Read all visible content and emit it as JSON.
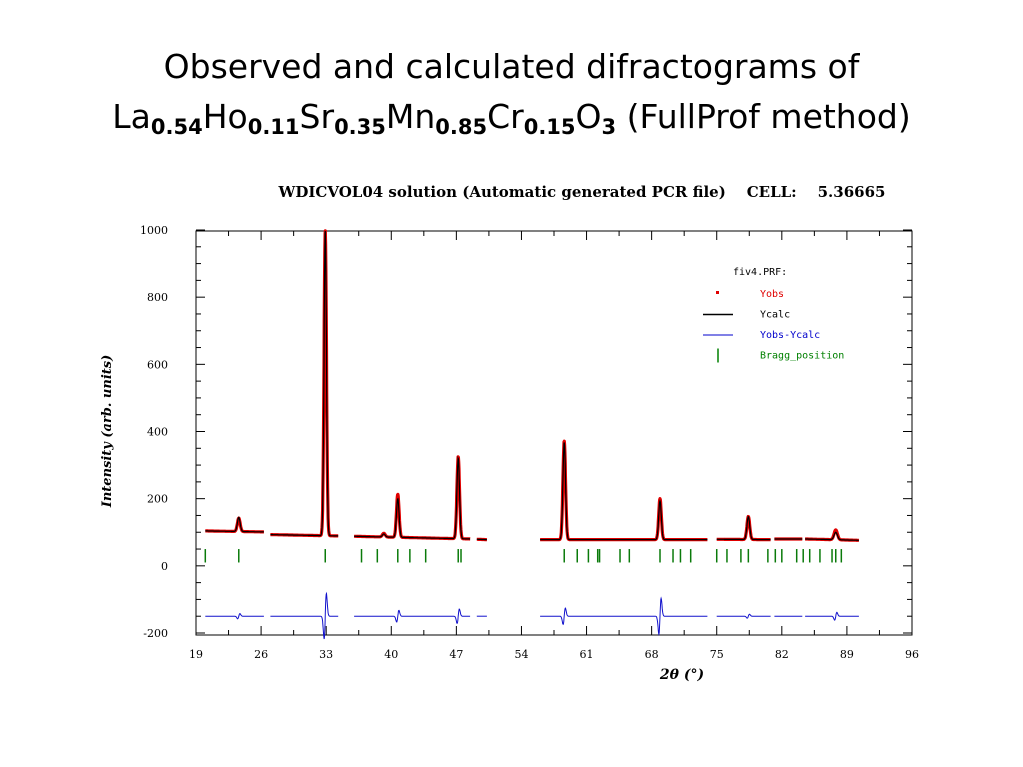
{
  "slide": {
    "title_line1": "Observed and calculated difractograms of",
    "formula": [
      {
        "el": "La",
        "sub": "0.54"
      },
      {
        "el": "Ho",
        "sub": "0.11"
      },
      {
        "el": "Sr",
        "sub": "0.35"
      },
      {
        "el": "Mn",
        "sub": "0.85"
      },
      {
        "el": "Cr",
        "sub": "0.15"
      },
      {
        "el": "O",
        "sub": "3"
      }
    ],
    "title_suffix": "(FullProf method)"
  },
  "chart_data": {
    "type": "line",
    "title": "WDICVOL04 solution (Automatic generated PCR file)    CELL:    5.36665",
    "xlabel": "2θ (°)",
    "ylabel": "Intensity (arb. units)",
    "xlim": [
      19,
      96
    ],
    "ylim": [
      -200,
      1000
    ],
    "xticks": [
      19,
      26,
      33,
      40,
      47,
      54,
      61,
      68,
      75,
      82,
      89,
      96
    ],
    "yticks": [
      -200,
      0,
      200,
      400,
      600,
      800,
      1000
    ],
    "legend": {
      "title": "fiv4.PRF:",
      "position": "top-right",
      "entries": [
        {
          "name": "Yobs",
          "color": "#e00000",
          "style": "dot"
        },
        {
          "name": "Ycalc",
          "color": "#000000",
          "style": "line"
        },
        {
          "name": "Yobs-Ycalc",
          "color": "#0000cc",
          "style": "thin-line"
        },
        {
          "name": "Bragg_position",
          "color": "#008000",
          "style": "tick"
        }
      ]
    },
    "colors": {
      "obs": "#e00000",
      "calc": "#000000",
      "diff": "#1010cc",
      "bragg": "#0a7a0a"
    },
    "segments": [
      [
        20.0,
        26.3
      ],
      [
        27.0,
        34.3
      ],
      [
        36.0,
        48.5
      ],
      [
        49.2,
        50.3
      ],
      [
        56.0,
        74.0
      ],
      [
        75.0,
        80.8
      ],
      [
        81.2,
        84.2
      ],
      [
        84.5,
        90.3
      ]
    ],
    "backgrounds": [
      [
        20.0,
        104
      ],
      [
        26.3,
        101
      ],
      [
        27.0,
        93
      ],
      [
        34.3,
        89
      ],
      [
        36.0,
        88
      ],
      [
        48.5,
        80
      ],
      [
        49.2,
        79
      ],
      [
        50.3,
        78
      ],
      [
        56.0,
        78
      ],
      [
        74.0,
        78
      ],
      [
        75.0,
        79
      ],
      [
        80.8,
        78
      ],
      [
        81.2,
        80
      ],
      [
        84.2,
        80
      ],
      [
        84.5,
        80
      ],
      [
        90.3,
        76
      ]
    ],
    "peaks": [
      {
        "x": 23.6,
        "h": 42,
        "obs": 142,
        "w": 0.15
      },
      {
        "x": 32.9,
        "h": 910,
        "obs": 1000,
        "w": 0.13
      },
      {
        "x": 39.2,
        "h": 9,
        "obs": 97,
        "w": 0.15
      },
      {
        "x": 40.7,
        "h": 115,
        "obs": 213,
        "w": 0.14
      },
      {
        "x": 47.2,
        "h": 240,
        "obs": 325,
        "w": 0.14
      },
      {
        "x": 58.6,
        "h": 290,
        "obs": 372,
        "w": 0.14
      },
      {
        "x": 68.9,
        "h": 115,
        "obs": 200,
        "w": 0.14
      },
      {
        "x": 78.4,
        "h": 68,
        "obs": 147,
        "w": 0.15
      },
      {
        "x": 87.8,
        "h": 22,
        "obs": 107,
        "w": 0.18
      }
    ],
    "difference_baseline": -150,
    "difference_spikes": [
      {
        "x": 23.6,
        "a": 8
      },
      {
        "x": 32.9,
        "a": 70
      },
      {
        "x": 40.7,
        "a": 18
      },
      {
        "x": 47.2,
        "a": 22
      },
      {
        "x": 58.6,
        "a": 25
      },
      {
        "x": 68.9,
        "a": 55
      },
      {
        "x": 78.4,
        "a": 6
      },
      {
        "x": 87.8,
        "a": 12
      }
    ],
    "bragg_positions": [
      20.0,
      23.6,
      32.9,
      36.8,
      38.5,
      40.7,
      42.0,
      43.7,
      47.2,
      47.5,
      58.6,
      60.0,
      61.2,
      62.2,
      62.4,
      64.6,
      65.6,
      68.9,
      70.3,
      71.1,
      72.2,
      75.0,
      76.1,
      77.6,
      78.4,
      80.5,
      81.3,
      82.0,
      83.6,
      84.3,
      85.0,
      86.1,
      87.4,
      87.8,
      88.4
    ]
  }
}
